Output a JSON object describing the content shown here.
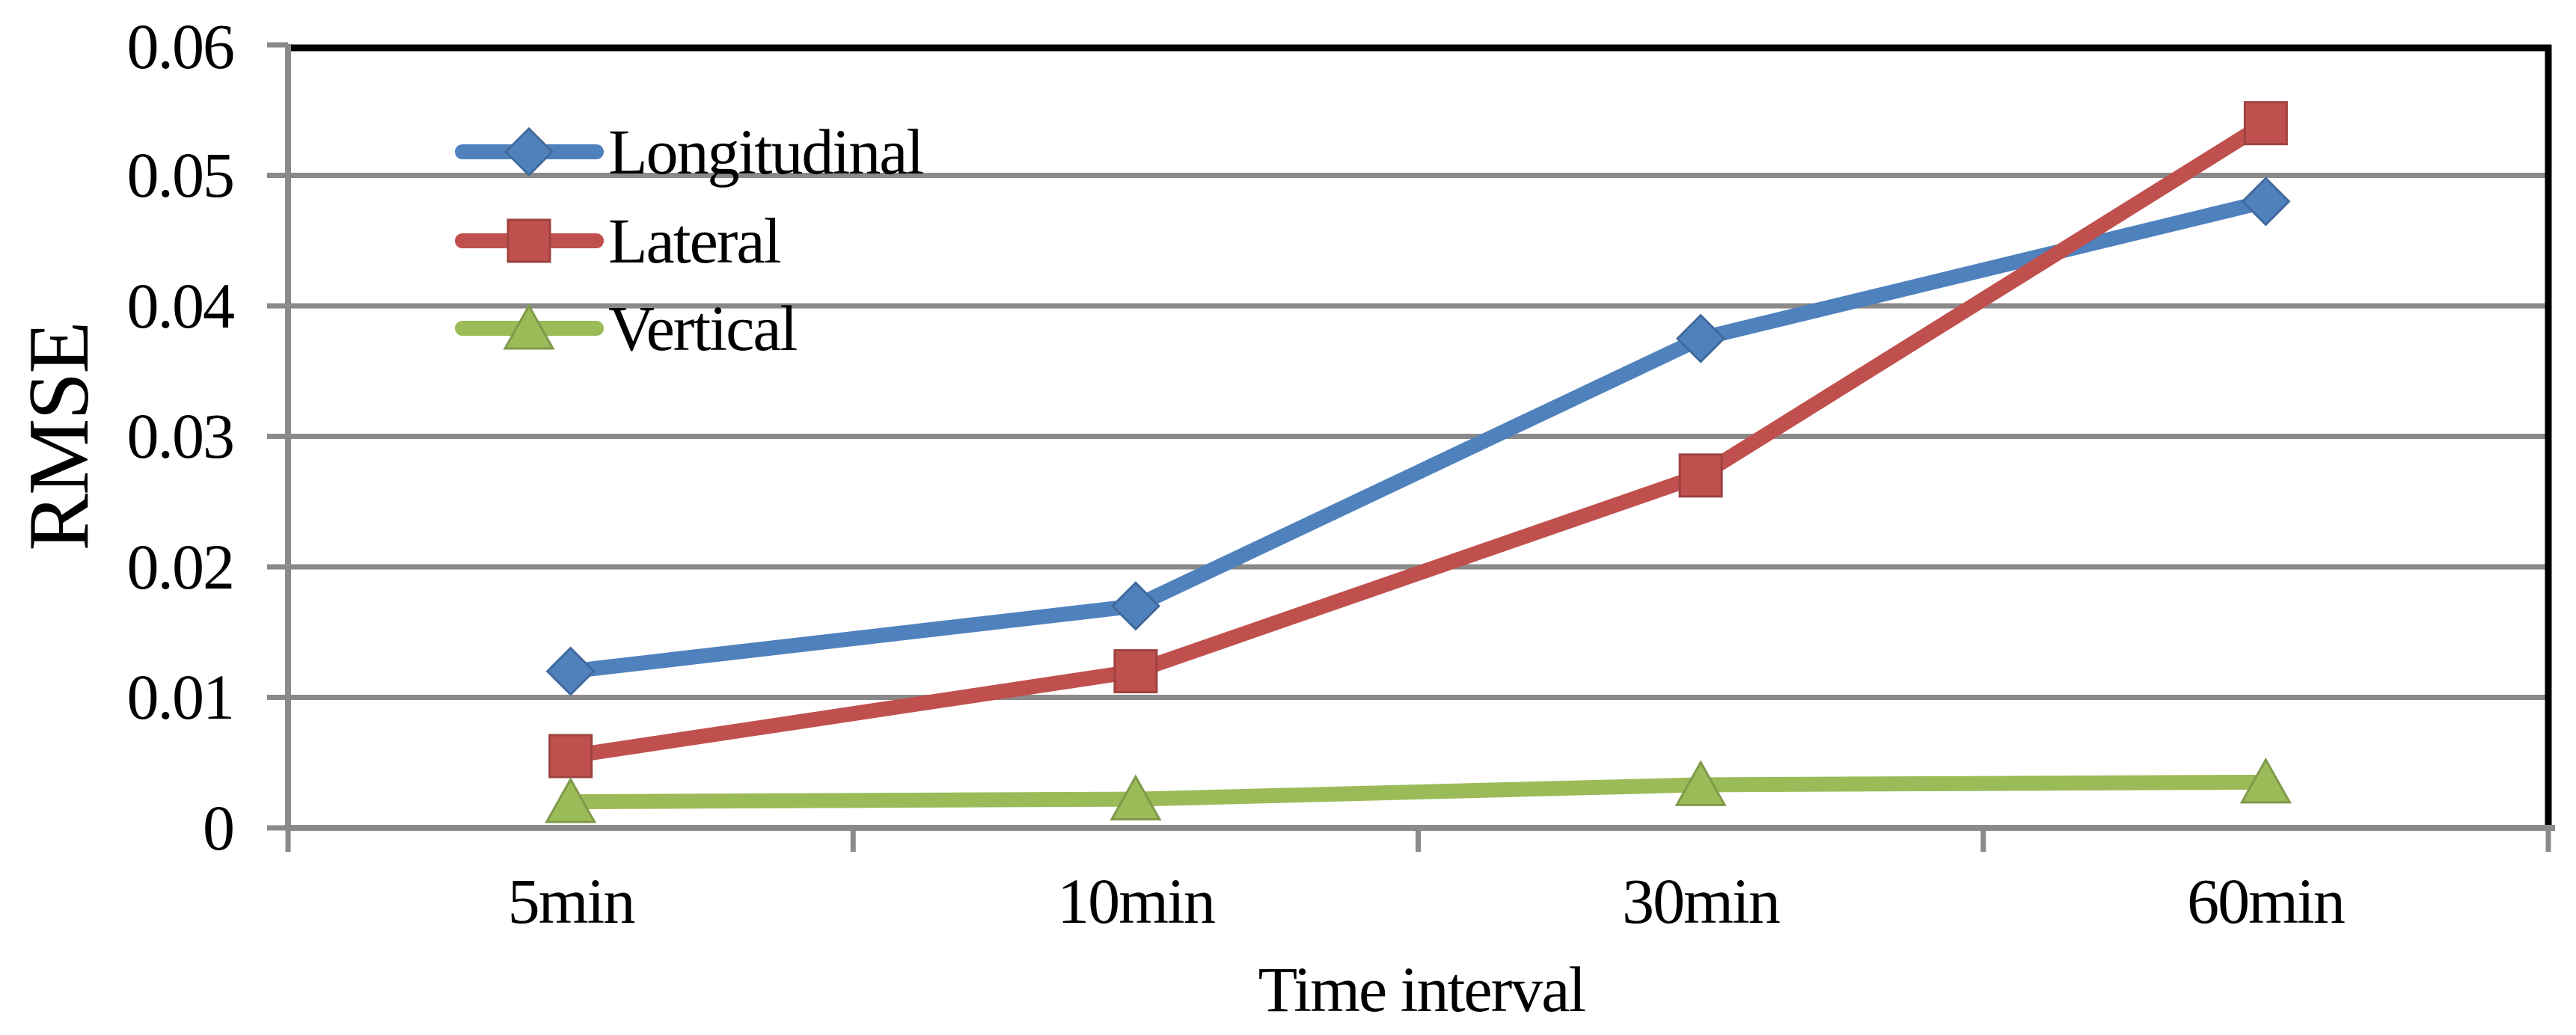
{
  "chart_data": {
    "type": "line",
    "title": "",
    "xlabel": "Time interval",
    "ylabel": "RMSE",
    "categories": [
      "5min",
      "10min",
      "30min",
      "60min"
    ],
    "series": [
      {
        "name": "Longitudinal",
        "marker": "diamond",
        "color": "#4F81BD",
        "values": [
          0.012,
          0.017,
          0.0375,
          0.048
        ]
      },
      {
        "name": "Lateral",
        "marker": "square",
        "color": "#C0504D",
        "values": [
          0.0055,
          0.012,
          0.027,
          0.054
        ]
      },
      {
        "name": "Vertical",
        "marker": "triangle",
        "color": "#9BBB59",
        "values": [
          0.002,
          0.0022,
          0.0033,
          0.0035
        ]
      }
    ],
    "y_ticks": [
      0,
      0.01,
      0.02,
      0.03,
      0.04,
      0.05,
      0.06
    ],
    "y_tick_labels": [
      "0",
      "0.01",
      "0.02",
      "0.03",
      "0.04",
      "0.05",
      "0.06"
    ],
    "ylim": [
      0,
      0.06
    ],
    "grid": true,
    "legend_position": "inside-top-left",
    "colors": {
      "gridline": "#8A8A8A",
      "axis": "#8A8A8A",
      "plot_border": "#000000",
      "background": "#FFFFFF",
      "text": "#000000"
    }
  }
}
